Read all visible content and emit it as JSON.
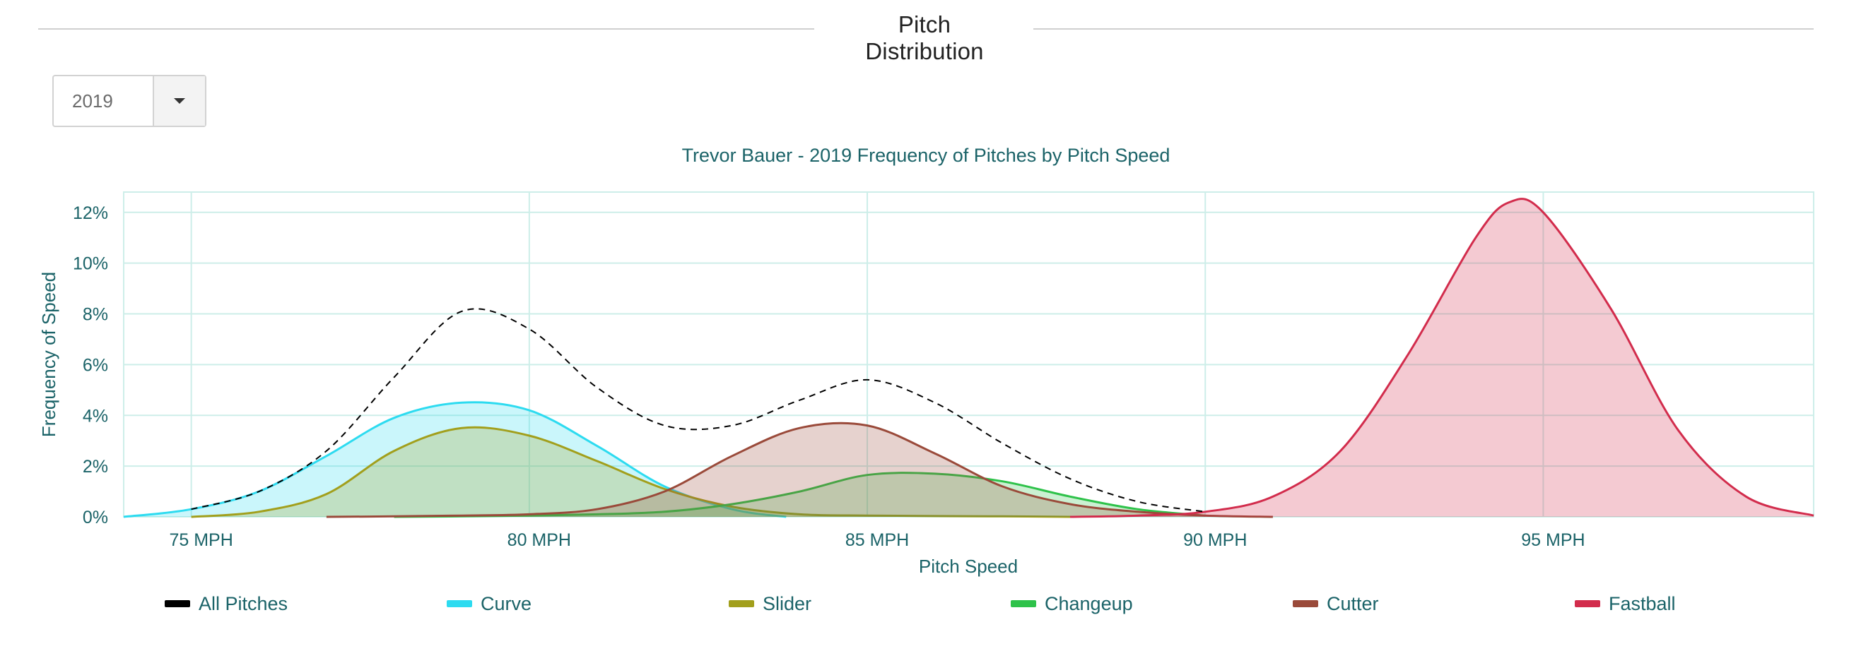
{
  "header": {
    "title": "Pitch Distribution"
  },
  "year_select": {
    "value": "2019",
    "icon": "caret-down-icon"
  },
  "colors": {
    "All Pitches": "#000000",
    "Curve": "#2ddbf0",
    "Slider": "#a29f1c",
    "Changeup": "#2ec24a",
    "Cutter": "#9a4a3a",
    "Fastball": "#d22c4c",
    "grid": "#cdeee9",
    "text": "#1b6368"
  },
  "chart_data": {
    "type": "area",
    "title": "Trevor Bauer - 2019 Frequency of Pitches by Pitch Speed",
    "xlabel": "Pitch Speed",
    "ylabel": "Frequency of Speed",
    "x_ticks": [
      "75 MPH",
      "80 MPH",
      "85 MPH",
      "90 MPH",
      "95 MPH"
    ],
    "x_tick_values": [
      75,
      80,
      85,
      90,
      95
    ],
    "y_ticks": [
      "0%",
      "2%",
      "4%",
      "6%",
      "8%",
      "10%",
      "12%"
    ],
    "y_tick_values": [
      0,
      2,
      4,
      6,
      8,
      10,
      12
    ],
    "xlim": [
      74,
      99
    ],
    "ylim": [
      0,
      12.8
    ],
    "grid": true,
    "legend_position": "bottom",
    "series": [
      {
        "name": "All Pitches",
        "filled": false,
        "dashed": true,
        "x": [
          75.0,
          76.0,
          77.0,
          78.0,
          79.0,
          80.0,
          81.0,
          82.0,
          83.0,
          84.0,
          85.0,
          86.0,
          87.0,
          88.0,
          89.0,
          90.0
        ],
        "y": [
          0.3,
          1.0,
          2.6,
          5.5,
          8.1,
          7.4,
          5.1,
          3.6,
          3.6,
          4.6,
          5.4,
          4.5,
          2.9,
          1.5,
          0.6,
          0.2
        ]
      },
      {
        "name": "Curve",
        "filled": true,
        "x": [
          74.0,
          75.0,
          76.0,
          77.0,
          78.0,
          79.0,
          80.0,
          81.0,
          82.0,
          83.0,
          83.8
        ],
        "y": [
          0.0,
          0.3,
          1.0,
          2.4,
          3.9,
          4.5,
          4.2,
          2.8,
          1.2,
          0.3,
          0.0
        ]
      },
      {
        "name": "Slider",
        "filled": true,
        "x": [
          75.0,
          76.0,
          77.0,
          78.0,
          79.0,
          80.0,
          81.0,
          82.0,
          83.0,
          84.0,
          85.0,
          86.0,
          87.0,
          88.0
        ],
        "y": [
          0.0,
          0.2,
          0.9,
          2.6,
          3.5,
          3.2,
          2.2,
          1.1,
          0.4,
          0.1,
          0.05,
          0.03,
          0.02,
          0.0
        ]
      },
      {
        "name": "Changeup",
        "filled": true,
        "x": [
          78.0,
          79.0,
          80.0,
          81.0,
          82.0,
          83.0,
          84.0,
          85.0,
          86.0,
          87.0,
          88.0,
          89.0,
          90.0
        ],
        "y": [
          0.0,
          0.02,
          0.05,
          0.1,
          0.2,
          0.5,
          1.0,
          1.65,
          1.7,
          1.4,
          0.8,
          0.3,
          0.05
        ]
      },
      {
        "name": "Cutter",
        "filled": true,
        "x": [
          77.0,
          78.0,
          79.0,
          80.0,
          81.0,
          82.0,
          83.0,
          84.0,
          85.0,
          86.0,
          87.0,
          88.0,
          89.0,
          90.0,
          91.0
        ],
        "y": [
          0.0,
          0.02,
          0.05,
          0.1,
          0.3,
          1.0,
          2.4,
          3.5,
          3.6,
          2.5,
          1.2,
          0.5,
          0.2,
          0.05,
          0.0
        ]
      },
      {
        "name": "Fastball",
        "filled": true,
        "x": [
          88.0,
          89.0,
          90.0,
          91.0,
          92.0,
          93.0,
          94.0,
          94.5,
          95.0,
          96.0,
          97.0,
          98.0,
          99.0
        ],
        "y": [
          0.0,
          0.05,
          0.2,
          0.8,
          2.6,
          6.4,
          11.0,
          12.4,
          12.0,
          8.2,
          3.4,
          0.8,
          0.05
        ]
      }
    ]
  }
}
